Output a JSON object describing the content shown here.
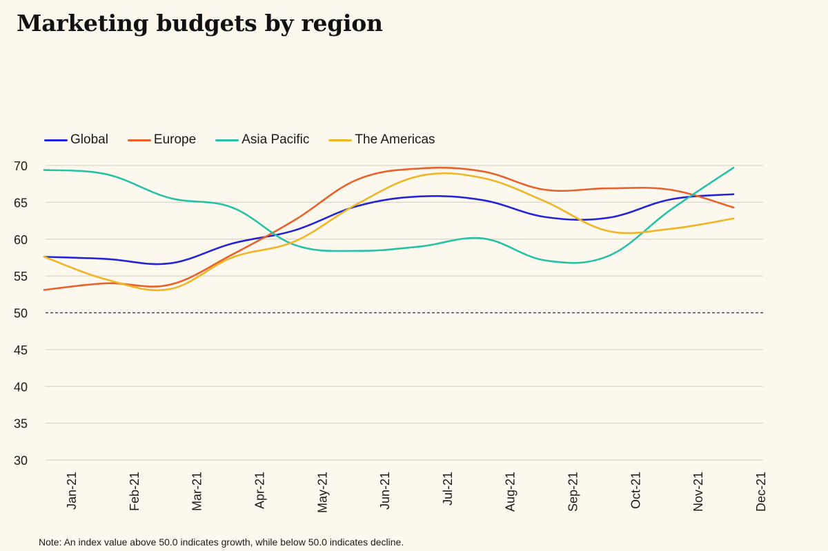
{
  "header": {
    "title": "Marketing budgets by region"
  },
  "note": "Note: An index value above 50.0 indicates growth, while below 50.0 indicates decline.",
  "legend": [
    "Global",
    "Europe",
    "Asia Pacific",
    "The Americas"
  ],
  "chart_data": {
    "type": "line",
    "title": "Marketing budgets by region",
    "xlabel": "",
    "ylabel": "",
    "categories": [
      "Jan-21",
      "Feb-21",
      "Mar-21",
      "Apr-21",
      "May-21",
      "Jun-21",
      "Jul-21",
      "Aug-21",
      "Sep-21",
      "Oct-21",
      "Nov-21",
      "Dec-21"
    ],
    "y_ticks": [
      "70",
      "65",
      "60",
      "55",
      "50",
      "45",
      "40",
      "35",
      "30"
    ],
    "ylim": [
      30,
      70
    ],
    "grid": true,
    "legend_position": "top-left",
    "reference_line": {
      "value": 50,
      "style": "dashed",
      "color": "#2e4a73"
    },
    "series": [
      {
        "name": "Global",
        "color": "#2323d8",
        "values": [
          57.6,
          57.3,
          56.7,
          59.4,
          61.2,
          64.5,
          65.8,
          65.3,
          63.0,
          62.9,
          65.4,
          66.1
        ]
      },
      {
        "name": "Europe",
        "color": "#e8612c",
        "values": [
          53.1,
          54.0,
          53.8,
          57.9,
          62.6,
          68.1,
          69.6,
          69.2,
          66.7,
          66.9,
          66.7,
          64.3
        ]
      },
      {
        "name": "Asia Pacific",
        "color": "#25c1a7",
        "values": [
          69.4,
          68.8,
          65.6,
          64.3,
          59.2,
          58.4,
          59.0,
          60.1,
          57.1,
          57.7,
          64.0,
          69.7
        ]
      },
      {
        "name": "The Americas",
        "color": "#efb524",
        "values": [
          57.6,
          54.5,
          53.2,
          57.5,
          59.7,
          64.8,
          68.6,
          68.3,
          65.1,
          61.1,
          61.4,
          62.8
        ]
      }
    ]
  }
}
